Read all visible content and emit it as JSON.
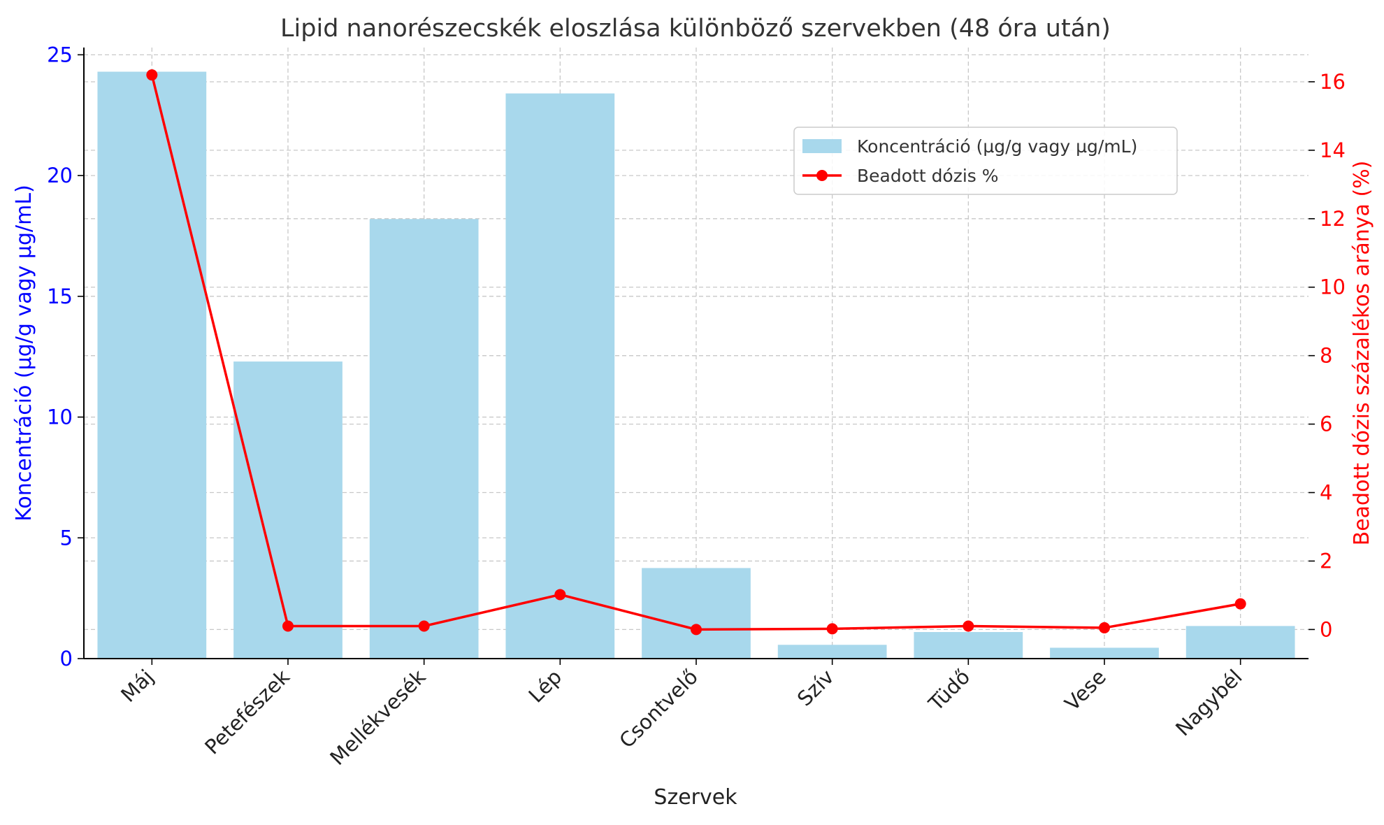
{
  "chart_data": {
    "type": "bar+line",
    "title": "Lipid nanorészecskék eloszlása különböző szervekben (48 óra után)",
    "xlabel": "Szervek",
    "ylabel_left": "Koncentráció (µg/g vagy µg/mL)",
    "ylabel_right": "Beadott dózis százalékos aránya (%)",
    "categories": [
      "Máj",
      "Petefészek",
      "Mellékvesék",
      "Lép",
      "Csontvelő",
      "Szív",
      "Tüdő",
      "Vese",
      "Nagybél"
    ],
    "series": [
      {
        "name": "Koncentráció (µg/g vagy µg/mL)",
        "type": "bar",
        "axis": "left",
        "color": "#a8d8ec",
        "values": [
          24.3,
          12.3,
          18.2,
          23.4,
          3.75,
          0.57,
          1.1,
          0.45,
          1.35
        ]
      },
      {
        "name": "Beadott dózis %",
        "type": "line",
        "axis": "right",
        "color": "#ff0000",
        "values": [
          16.2,
          0.1,
          0.1,
          1.02,
          0.0,
          0.02,
          0.1,
          0.05,
          0.75
        ]
      }
    ],
    "ylim_left": [
      0,
      25.3
    ],
    "yticks_left": [
      0,
      5,
      10,
      15,
      20,
      25
    ],
    "ylim_right": [
      -0.85,
      17.0
    ],
    "yticks_right": [
      0,
      2,
      4,
      6,
      8,
      10,
      12,
      14,
      16
    ],
    "left_axis_color": "#0000ff",
    "right_axis_color": "#ff0000",
    "grid": true,
    "legend_position": "upper-right-inside"
  }
}
